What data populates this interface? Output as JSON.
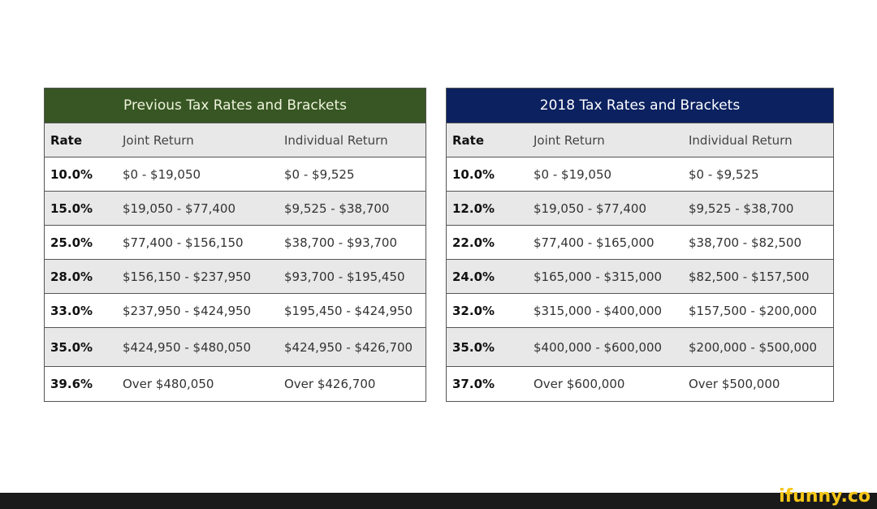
{
  "previous": {
    "title": "Previous Tax Rates and Brackets",
    "header_color": "#375623",
    "columns": [
      "Rate",
      "Joint Return",
      "Individual Return"
    ],
    "rows": [
      [
        "10.0%",
        "$0 - $19,050",
        "$0 - $9,525"
      ],
      [
        "15.0%",
        "$19,050 - $77,400",
        "$9,525 - $38,700"
      ],
      [
        "25.0%",
        "$77,400 - $156,150",
        "$38,700 - $93,700"
      ],
      [
        "28.0%",
        "$156,150 - $237,950",
        "$93,700 - $195,450"
      ],
      [
        "33.0%",
        "$237,950 - $424,950",
        "$195,450 - $424,950"
      ],
      [
        "35.0%",
        "$424,950 - $480,050",
        "$424,950 - $426,700"
      ],
      [
        "39.6%",
        "Over $480,050",
        "Over $426,700"
      ]
    ]
  },
  "current": {
    "title": "2018 Tax Rates and Brackets",
    "header_color": "#0b2160",
    "columns": [
      "Rate",
      "Joint Return",
      "Individual Return"
    ],
    "rows": [
      [
        "10.0%",
        "$0 - $19,050",
        "$0 - $9,525"
      ],
      [
        "12.0%",
        "$19,050 - $77,400",
        "$9,525 - $38,700"
      ],
      [
        "22.0%",
        "$77,400 - $165,000",
        "$38,700 - $82,500"
      ],
      [
        "24.0%",
        "$165,000 - $315,000",
        "$82,500 - $157,500"
      ],
      [
        "32.0%",
        "$315,000 - $400,000",
        "$157,500 - $200,000"
      ],
      [
        "35.0%",
        "$400,000 - $600,000",
        "$200,000 - $500,000"
      ],
      [
        "37.0%",
        "Over $600,000",
        "Over $500,000"
      ]
    ]
  },
  "watermark": "ifunny.co"
}
